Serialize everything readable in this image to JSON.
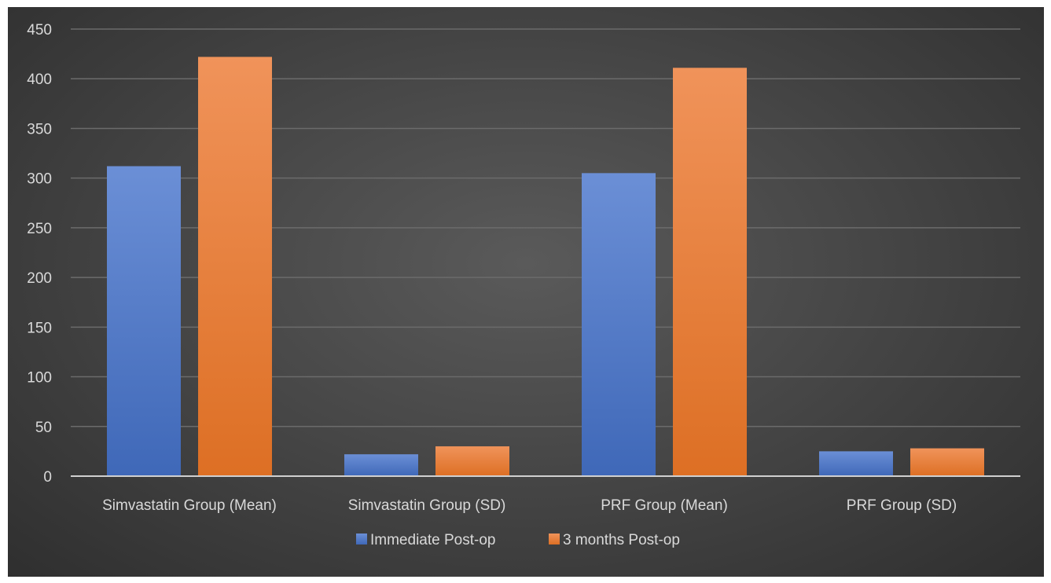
{
  "chart_data": {
    "type": "bar",
    "title": "",
    "xlabel": "",
    "ylabel": "",
    "categories": [
      "Simvastatin Group (Mean)",
      "Simvastatin Group (SD)",
      "PRF Group (Mean)",
      "PRF Group (SD)"
    ],
    "series": [
      {
        "name": "Immediate Post-op",
        "values": [
          312,
          22,
          305,
          25
        ],
        "color": "#4472c4"
      },
      {
        "name": "3 months Post-op",
        "values": [
          422,
          30,
          411,
          28
        ],
        "color": "#ed7d31"
      }
    ],
    "ylim": [
      0,
      450
    ],
    "yticks": [
      "0",
      "50",
      "100",
      "150",
      "200",
      "250",
      "300",
      "350",
      "400",
      "450"
    ],
    "grid": true,
    "legend_position": "bottom",
    "background": "#474747",
    "gridline_color": "#6b6b6b",
    "text_color": "#d9d9d9"
  }
}
